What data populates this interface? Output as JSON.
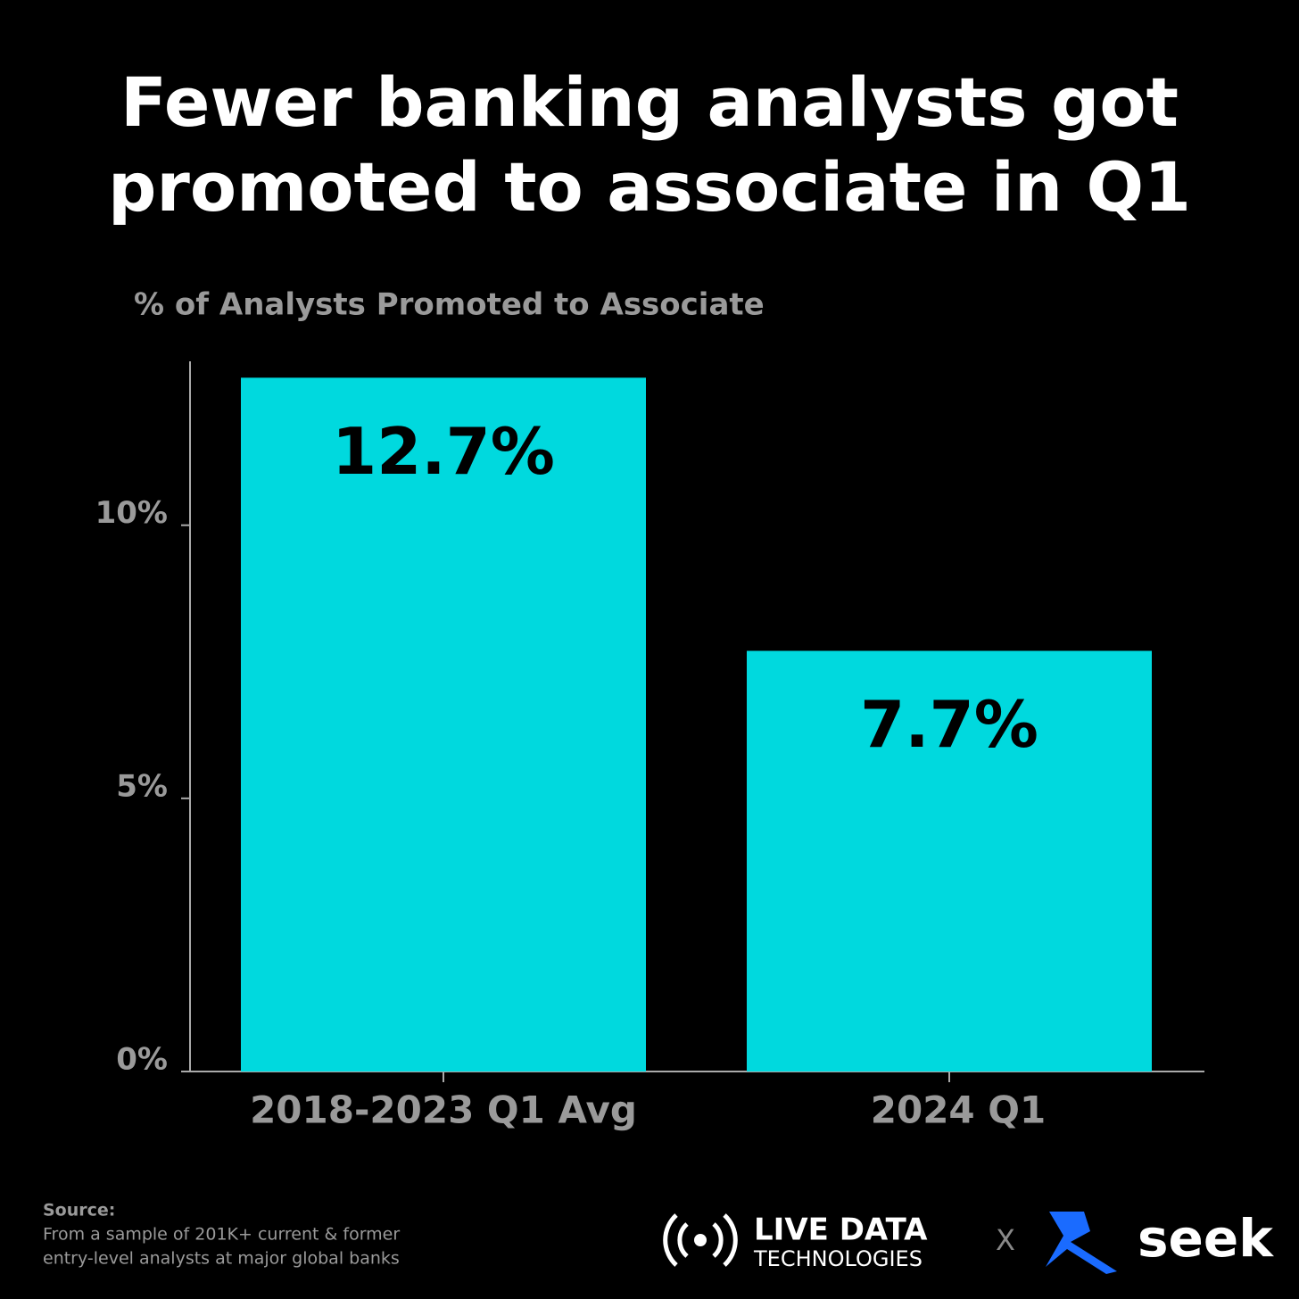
{
  "chart_data": {
    "type": "bar",
    "title": [
      "Fewer banking analysts got",
      "promoted to associate in Q1"
    ],
    "subtitle": "% of Analysts Promoted to Associate",
    "categories": [
      "2018-2023 Q1 Avg",
      "2024 Q1"
    ],
    "values": [
      12.7,
      7.7
    ],
    "value_labels": [
      "12.7%",
      "7.7%"
    ],
    "color": "#00d9de",
    "ylim": [
      0,
      13
    ],
    "yticks": [
      {
        "value": 0,
        "label": "0%"
      },
      {
        "value": 5,
        "label": "5%"
      },
      {
        "value": 10,
        "label": "10%"
      }
    ]
  },
  "footer": {
    "source_label": "Source:",
    "source_lines": [
      "From a sample of 201K+ current & former",
      "entry-level analysts at major global banks"
    ],
    "logo_1": [
      "LIVE DATA",
      "TECHNOLOGIES"
    ],
    "separator": "X",
    "logo_2": "seek"
  }
}
